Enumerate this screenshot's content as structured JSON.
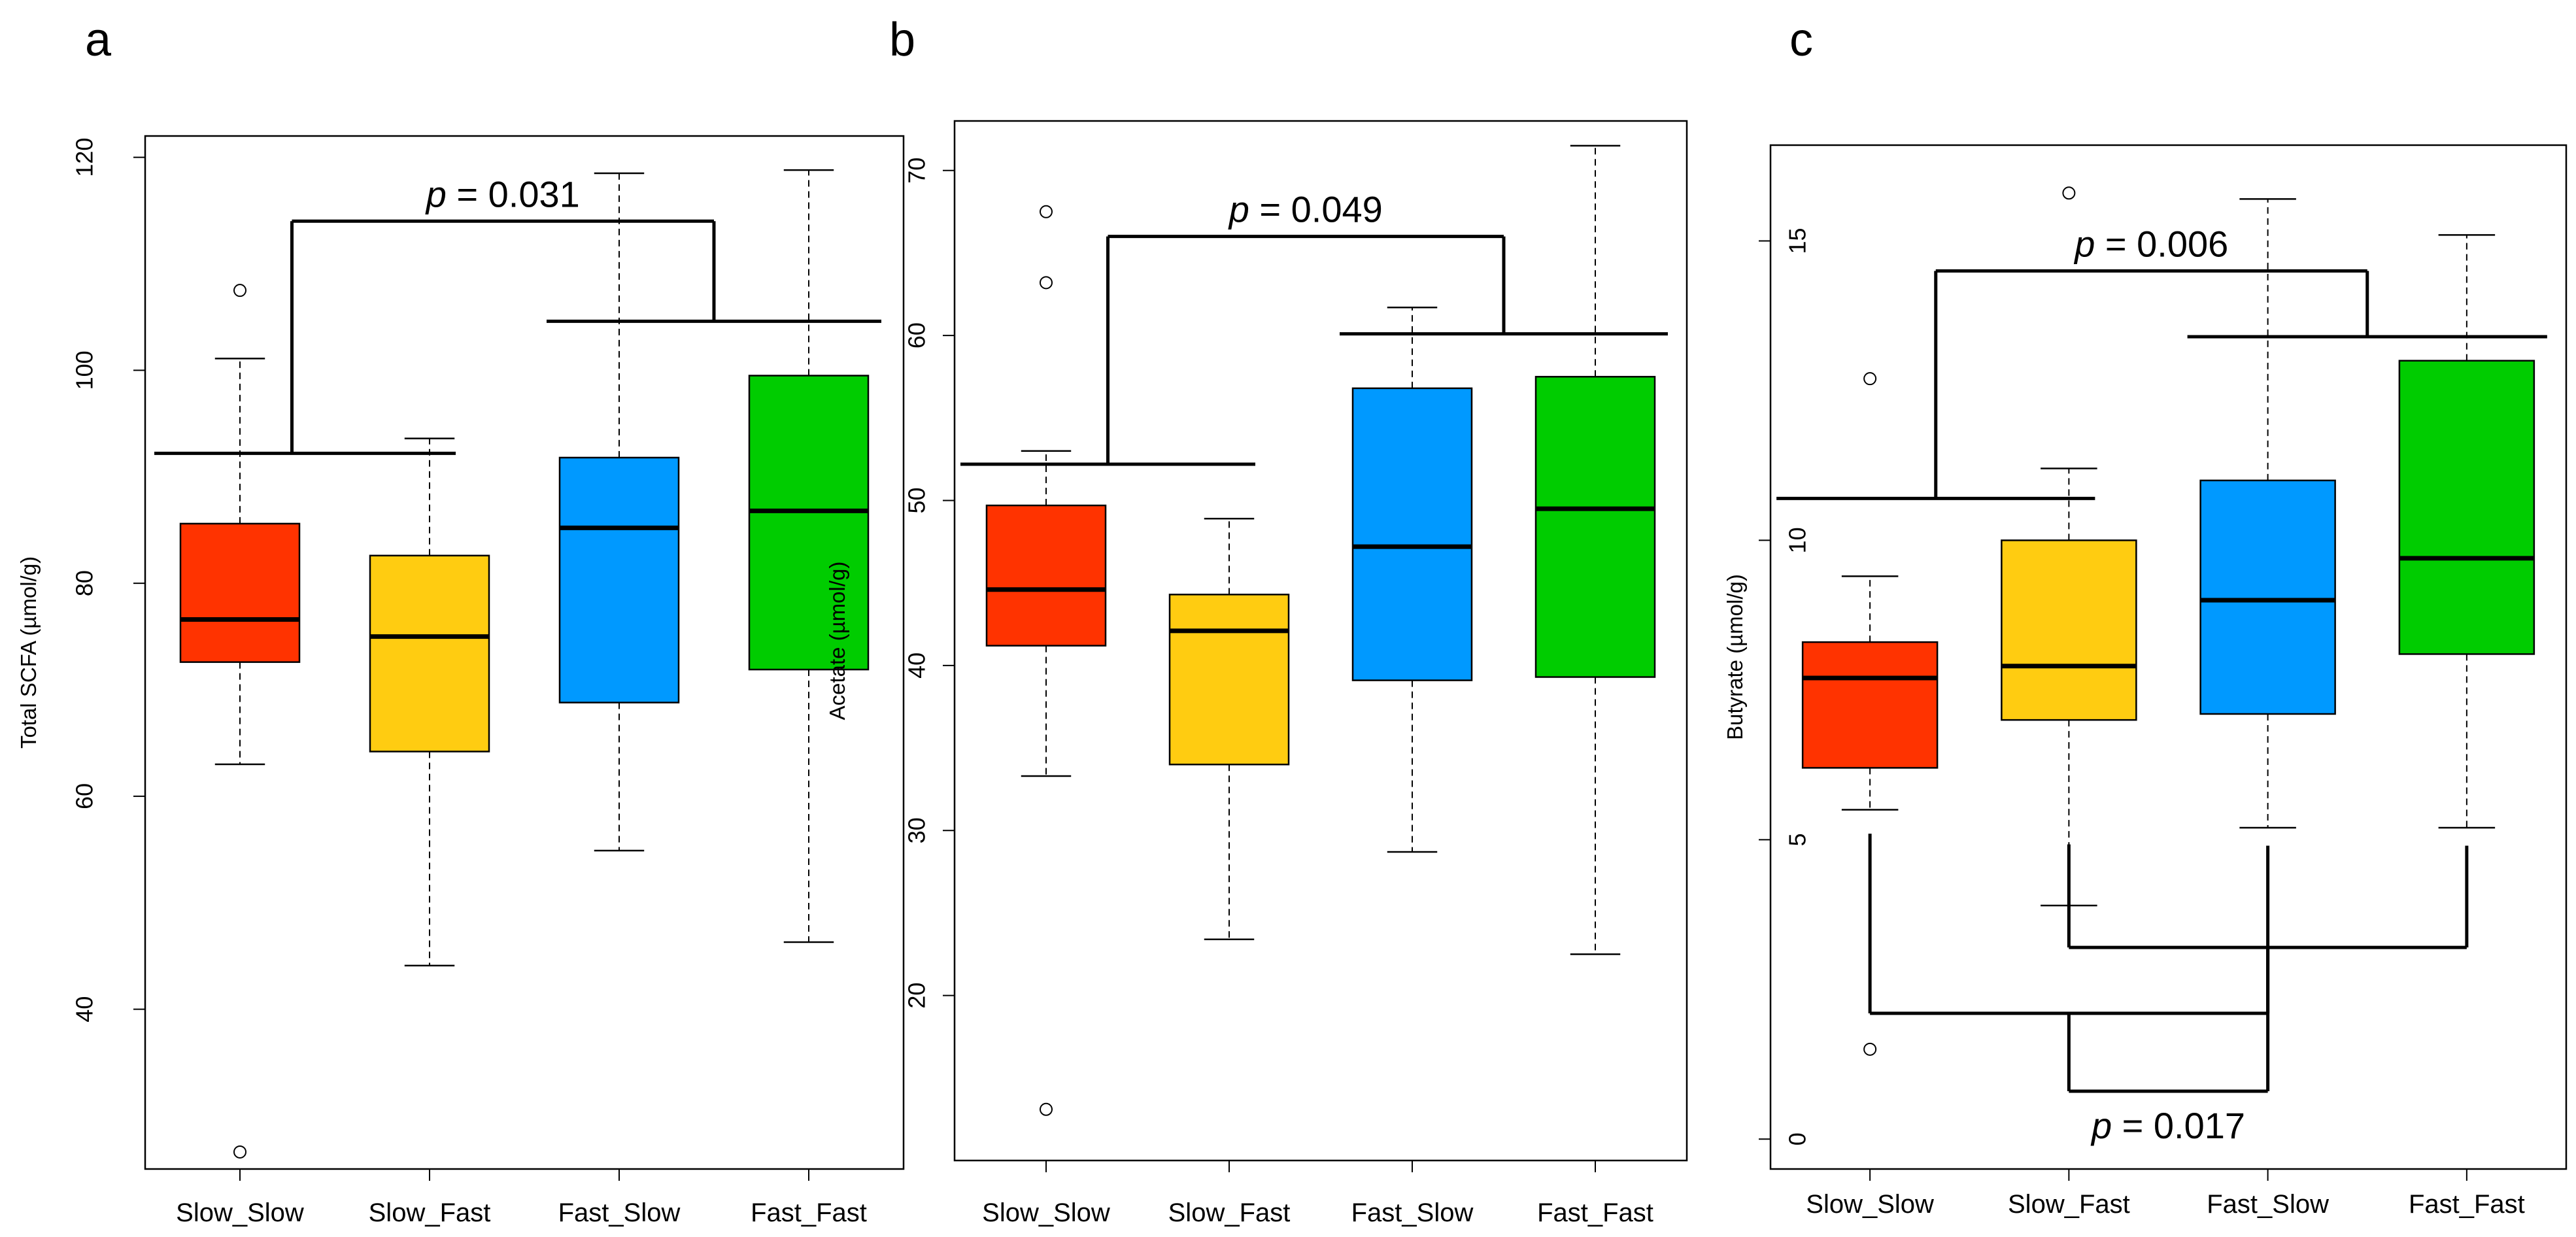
{
  "chart_data": [
    {
      "type": "box",
      "panel": "a",
      "ylabel": "Total SCFA (µmol/g)",
      "ylim": [
        25,
        122
      ],
      "yticks": [
        40,
        60,
        80,
        100,
        120
      ],
      "categories": [
        "Slow_Slow",
        "Slow_Fast",
        "Fast_Slow",
        "Fast_Fast"
      ],
      "colors": [
        "#ff3300",
        "#ffcc11",
        "#0099ff",
        "#00cc00"
      ],
      "boxes": [
        {
          "q1": 72.6,
          "median": 76.6,
          "q3": 85.6,
          "whisker_low": 63.0,
          "whisker_high": 101.1,
          "outliers": [
            107.5,
            26.6
          ]
        },
        {
          "q1": 64.2,
          "median": 75.0,
          "q3": 82.6,
          "whisker_low": 44.1,
          "whisker_high": 93.6,
          "outliers": []
        },
        {
          "q1": 68.8,
          "median": 85.2,
          "q3": 91.8,
          "whisker_low": 54.9,
          "whisker_high": 118.5,
          "outliers": []
        },
        {
          "q1": 71.9,
          "median": 86.8,
          "q3": 99.5,
          "whisker_low": 46.3,
          "whisker_high": 118.8,
          "outliers": []
        }
      ],
      "comparisons": [
        {
          "p_label": "p",
          "p_value": " = 0.031",
          "left_group": [
            1,
            2
          ],
          "right_group": [
            3,
            4
          ],
          "left_bar_y": 92.2,
          "right_bar_y": 104.6,
          "top_y": 114.0
        }
      ]
    },
    {
      "type": "box",
      "panel": "b",
      "ylabel": "Acetate (µmol/g)",
      "ylim": [
        10,
        73
      ],
      "yticks": [
        20,
        30,
        40,
        50,
        60,
        70
      ],
      "categories": [
        "Slow_Slow",
        "Slow_Fast",
        "Fast_Slow",
        "Fast_Fast"
      ],
      "colors": [
        "#ff3300",
        "#ffcc11",
        "#0099ff",
        "#00cc00"
      ],
      "boxes": [
        {
          "q1": 41.2,
          "median": 44.6,
          "q3": 49.7,
          "whisker_low": 33.3,
          "whisker_high": 53.0,
          "outliers": [
            67.5,
            63.2,
            13.1
          ]
        },
        {
          "q1": 34.0,
          "median": 42.1,
          "q3": 44.3,
          "whisker_low": 23.4,
          "whisker_high": 48.9,
          "outliers": []
        },
        {
          "q1": 39.1,
          "median": 47.2,
          "q3": 56.8,
          "whisker_low": 28.7,
          "whisker_high": 61.7,
          "outliers": []
        },
        {
          "q1": 39.3,
          "median": 49.5,
          "q3": 57.5,
          "whisker_low": 22.5,
          "whisker_high": 71.5,
          "outliers": []
        }
      ],
      "comparisons": [
        {
          "p_label": "p",
          "p_value": " = 0.049",
          "left_group": [
            1,
            2
          ],
          "right_group": [
            3,
            4
          ],
          "left_bar_y": 52.2,
          "right_bar_y": 60.1,
          "top_y": 66.0
        }
      ]
    },
    {
      "type": "box",
      "panel": "c",
      "ylabel": "Butyrate (µmol/g)",
      "ylim": [
        -0.5,
        16.6
      ],
      "yticks": [
        0,
        5,
        10,
        15
      ],
      "categories": [
        "Slow_Slow",
        "Slow_Fast",
        "Fast_Slow",
        "Fast_Fast"
      ],
      "colors": [
        "#ff3300",
        "#ffcc11",
        "#0099ff",
        "#00cc00"
      ],
      "boxes": [
        {
          "q1": 6.2,
          "median": 7.7,
          "q3": 8.3,
          "whisker_low": 5.5,
          "whisker_high": 9.4,
          "outliers": [
            12.7,
            1.5
          ]
        },
        {
          "q1": 7.0,
          "median": 7.9,
          "q3": 10.0,
          "whisker_low": 3.9,
          "whisker_high": 11.2,
          "outliers": [
            15.8
          ]
        },
        {
          "q1": 7.1,
          "median": 9.0,
          "q3": 11.0,
          "whisker_low": 5.2,
          "whisker_high": 15.7,
          "outliers": []
        },
        {
          "q1": 8.1,
          "median": 9.7,
          "q3": 13.0,
          "whisker_low": 5.2,
          "whisker_high": 15.1,
          "outliers": []
        }
      ],
      "comparisons": [
        {
          "p_label": "p",
          "p_value": " = 0.006",
          "left_group": [
            1,
            2
          ],
          "right_group": [
            3,
            4
          ],
          "left_bar_y": 10.7,
          "right_bar_y": 13.4,
          "top_y": 14.5,
          "direction": "up"
        },
        {
          "p_label": "p",
          "p_value": " = 0.017",
          "left_group": [
            1,
            3
          ],
          "right_group": [
            2,
            4
          ],
          "left_bar_y": 2.1,
          "right_bar_y": 3.2,
          "bottom_y": 0.8,
          "left_drop_top": 5.1,
          "right_drop_top": 4.9,
          "direction": "down"
        }
      ]
    }
  ]
}
